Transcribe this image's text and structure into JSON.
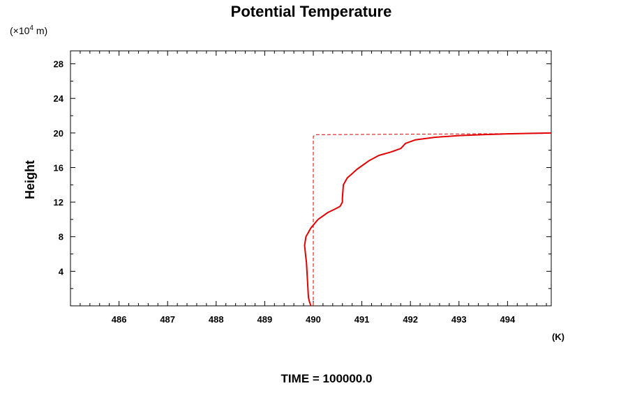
{
  "chart_data": {
    "type": "line",
    "title": "Potential Temperature",
    "ylabel": "Height",
    "y_unit_prefix": "(×10",
    "y_unit_exponent": "4",
    "y_unit_suffix": " m)",
    "x_unit": "(K)",
    "footer": "TIME = 100000.0",
    "xlim": [
      485,
      494.9
    ],
    "ylim": [
      0,
      29.5
    ],
    "x_ticks": [
      486,
      487,
      488,
      489,
      490,
      491,
      492,
      493,
      494
    ],
    "x_tick_labels": [
      "486",
      "487",
      "488",
      "489",
      "490",
      "491",
      "492",
      "493",
      "494"
    ],
    "y_ticks": [
      4,
      8,
      12,
      16,
      20,
      24,
      28
    ],
    "y_tick_labels": [
      "4",
      "8",
      "12",
      "16",
      "20",
      "24",
      "28"
    ],
    "grid": false,
    "series": [
      {
        "style": "solid",
        "color": "#e00000",
        "x": [
          489.95,
          489.92,
          489.9,
          489.89,
          489.88,
          489.87,
          489.86,
          489.84,
          489.82,
          489.85,
          489.95,
          490.1,
          490.3,
          490.45,
          490.55,
          490.6,
          490.6,
          490.62,
          490.7,
          490.8,
          490.9,
          491.0,
          491.15,
          491.35,
          491.6,
          491.8,
          491.9,
          492.1,
          492.5,
          493.0,
          493.5,
          494.0,
          494.9
        ],
        "y": [
          0,
          0.5,
          1,
          2,
          3,
          4,
          5,
          6,
          7,
          8,
          9,
          10,
          10.8,
          11.2,
          11.5,
          12,
          12.5,
          14,
          14.8,
          15.3,
          15.8,
          16.2,
          16.8,
          17.4,
          17.8,
          18.2,
          18.8,
          19.2,
          19.5,
          19.7,
          19.8,
          19.9,
          20
        ]
      },
      {
        "style": "dashed",
        "color": "#e00000",
        "x": [
          490.0,
          490.0,
          490.05,
          494.9
        ],
        "y": [
          0,
          19.6,
          19.8,
          19.95
        ]
      }
    ]
  }
}
